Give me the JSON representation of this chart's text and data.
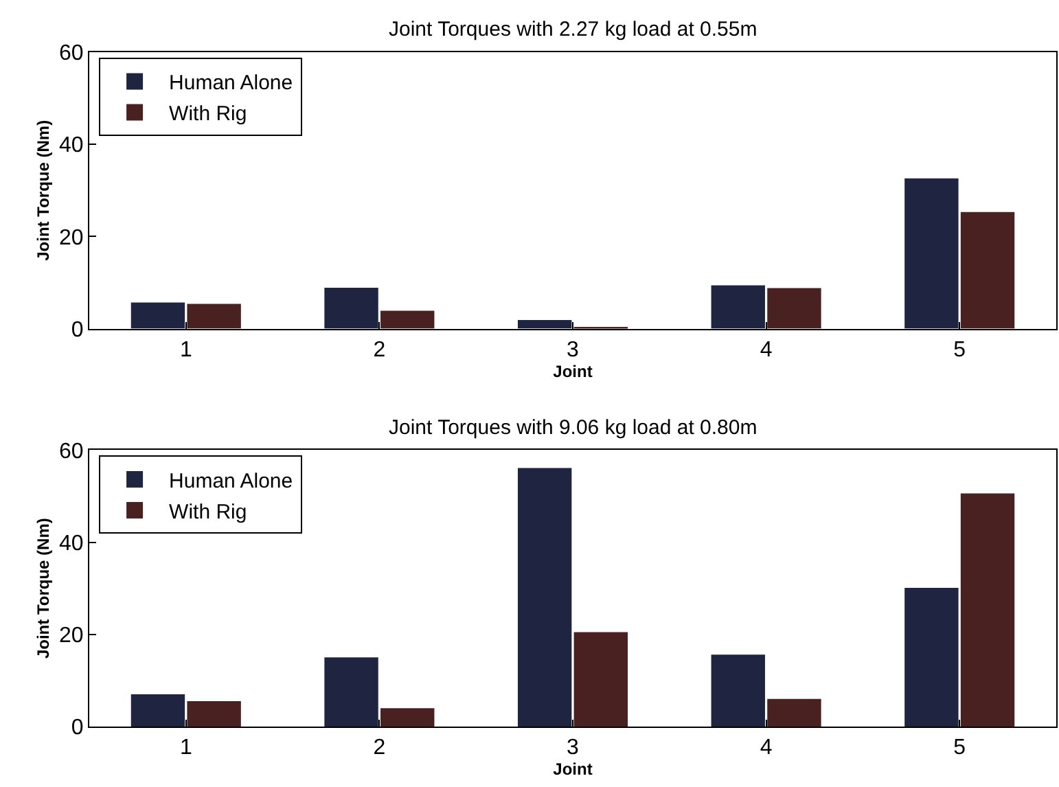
{
  "chart_data": [
    {
      "type": "bar",
      "title": "Joint Torques with 2.27 kg load at 0.55m",
      "xlabel": "Joint",
      "ylabel": "Joint Torque (Nm)",
      "categories": [
        "1",
        "2",
        "3",
        "4",
        "5"
      ],
      "series": [
        {
          "name": "Human Alone",
          "color": "#1f2440",
          "values": [
            5.7,
            8.9,
            1.9,
            9.4,
            32.6
          ]
        },
        {
          "name": "With Rig",
          "color": "#4a2121",
          "values": [
            5.4,
            3.9,
            0.3,
            8.8,
            25.3
          ]
        }
      ],
      "ylim": [
        0,
        60
      ],
      "yticks": [
        0,
        20,
        40,
        60
      ],
      "legend": "top left"
    },
    {
      "type": "bar",
      "title": "Joint Torques with 9.06 kg load at 0.80m",
      "xlabel": "Joint",
      "ylabel": "Joint Torque (Nm)",
      "categories": [
        "1",
        "2",
        "3",
        "4",
        "5"
      ],
      "series": [
        {
          "name": "Human Alone",
          "color": "#1f2440",
          "values": [
            7.0,
            15.0,
            56.1,
            15.6,
            30.1
          ]
        },
        {
          "name": "With Rig",
          "color": "#4a2121",
          "values": [
            5.5,
            4.0,
            20.5,
            6.0,
            50.6
          ]
        }
      ],
      "ylim": [
        0,
        60
      ],
      "yticks": [
        0,
        20,
        40,
        60
      ],
      "legend": "top left"
    }
  ]
}
